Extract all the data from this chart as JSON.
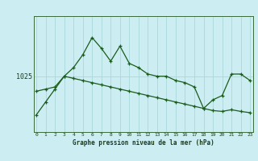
{
  "title": "Graphe pression niveau de la mer (hPa)",
  "bg_color": "#cceef3",
  "line_color": "#1a5c1a",
  "grid_color": "#aad8dc",
  "x_labels": [
    "0",
    "1",
    "2",
    "3",
    "4",
    "5",
    "6",
    "7",
    "8",
    "9",
    "10",
    "11",
    "12",
    "13",
    "14",
    "15",
    "16",
    "17",
    "18",
    "19",
    "20",
    "21",
    "22",
    "23"
  ],
  "x_values": [
    0,
    1,
    2,
    3,
    4,
    5,
    6,
    7,
    8,
    9,
    10,
    11,
    12,
    13,
    14,
    15,
    16,
    17,
    18,
    19,
    20,
    21,
    22,
    23
  ],
  "series1": [
    1016.0,
    1019.0,
    1022.0,
    1025.0,
    1027.0,
    1030.0,
    1034.0,
    1031.5,
    1028.5,
    1032.0,
    1028.0,
    1027.0,
    1025.5,
    1025.0,
    1025.0,
    1024.0,
    1023.5,
    1022.5,
    1017.5,
    1019.5,
    1020.5,
    1025.5,
    1025.5,
    1024.0
  ],
  "series2": [
    1021.5,
    1022.0,
    1022.5,
    1025.0,
    1024.5,
    1024.0,
    1023.5,
    1023.0,
    1022.5,
    1022.0,
    1021.5,
    1021.0,
    1020.5,
    1020.0,
    1019.5,
    1019.0,
    1018.5,
    1018.0,
    1017.5,
    1017.0,
    1016.8,
    1017.2,
    1016.8,
    1016.5
  ],
  "ytick_label": "1025",
  "ytick_value": 1025,
  "ylim_min": 1012,
  "ylim_max": 1039,
  "xlabel_fontsize": 5.5,
  "ylabel_fontsize": 6.0,
  "xtick_fontsize": 4.5
}
